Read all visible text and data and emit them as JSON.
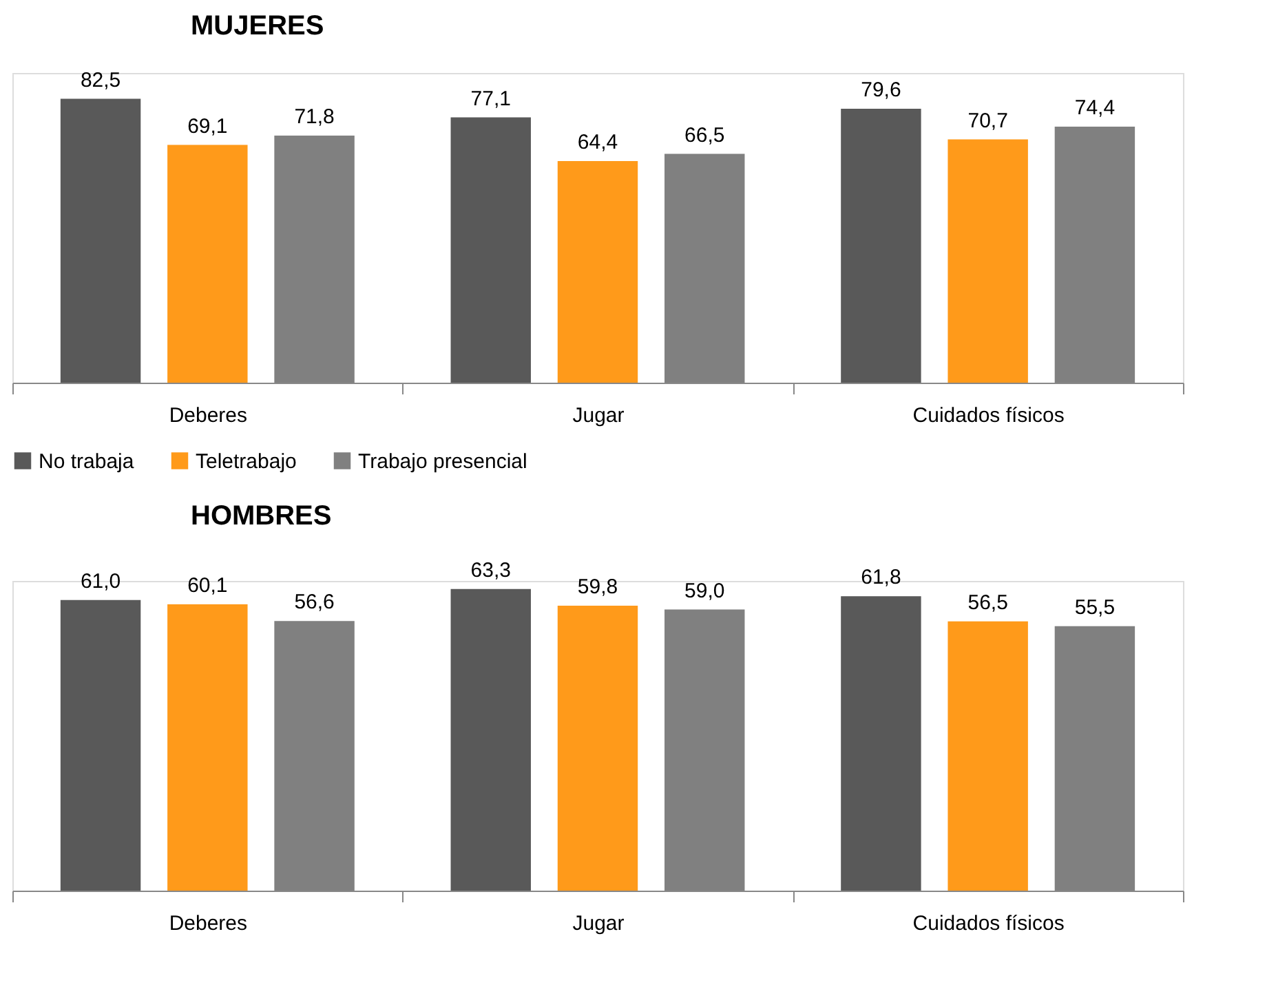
{
  "chart_data": [
    {
      "type": "bar",
      "title": "MUJERES",
      "categories": [
        "Deberes",
        "Jugar",
        "Cuidados físicos"
      ],
      "tick_labels": "x",
      "legend": "bottom",
      "grid": false,
      "series": [
        {
          "name": "No trabaja",
          "color": "#595959",
          "values": [
            82.5,
            77.1,
            79.6
          ],
          "value_labels": [
            "82,5",
            "77,1",
            "79,6"
          ]
        },
        {
          "name": "Teletrabajo",
          "color": "#ff9a1a",
          "values": [
            69.1,
            64.4,
            70.7
          ],
          "value_labels": [
            "69,1",
            "64,4",
            "70,7"
          ]
        },
        {
          "name": "Trabajo presencial",
          "color": "#808080",
          "values": [
            71.8,
            66.5,
            74.4
          ],
          "value_labels": [
            "71,8",
            "66,5",
            "74,4"
          ]
        }
      ]
    },
    {
      "type": "bar",
      "title": "HOMBRES",
      "categories": [
        "Deberes",
        "Jugar",
        "Cuidados físicos"
      ],
      "tick_labels": "x",
      "legend": false,
      "grid": false,
      "series": [
        {
          "name": "No trabaja",
          "color": "#595959",
          "values": [
            61.0,
            63.3,
            61.8
          ],
          "value_labels": [
            "61,0",
            "63,3",
            "61,8"
          ]
        },
        {
          "name": "Teletrabajo",
          "color": "#ff9a1a",
          "values": [
            60.1,
            59.8,
            56.5
          ],
          "value_labels": [
            "60,1",
            "59,8",
            "56,5"
          ]
        },
        {
          "name": "Trabajo presencial",
          "color": "#808080",
          "values": [
            56.6,
            59.0,
            55.5
          ],
          "value_labels": [
            "56,6",
            "59,0",
            "55,5"
          ]
        }
      ]
    }
  ]
}
